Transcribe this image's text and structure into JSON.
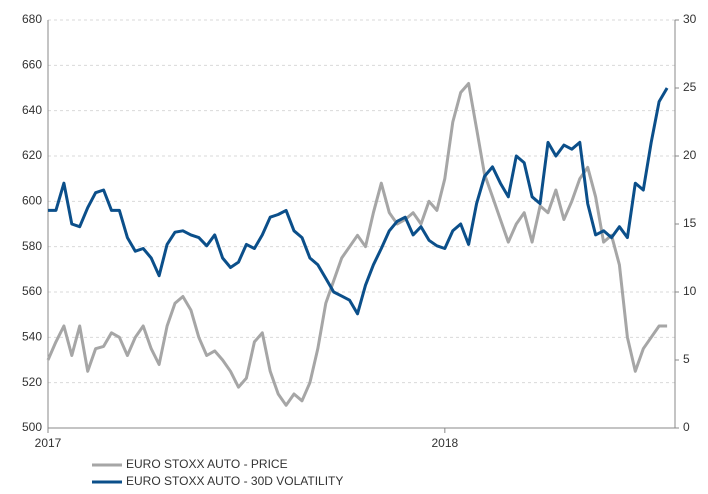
{
  "chart_data": {
    "type": "line",
    "x": [
      2017.0,
      2017.02,
      2017.04,
      2017.06,
      2017.08,
      2017.1,
      2017.12,
      2017.14,
      2017.16,
      2017.18,
      2017.2,
      2017.22,
      2017.24,
      2017.26,
      2017.28,
      2017.3,
      2017.32,
      2017.34,
      2017.36,
      2017.38,
      2017.4,
      2017.42,
      2017.44,
      2017.46,
      2017.48,
      2017.5,
      2017.52,
      2017.54,
      2017.56,
      2017.58,
      2017.6,
      2017.62,
      2017.64,
      2017.66,
      2017.68,
      2017.7,
      2017.72,
      2017.74,
      2017.76,
      2017.78,
      2017.8,
      2017.82,
      2017.84,
      2017.86,
      2017.88,
      2017.9,
      2017.92,
      2017.94,
      2017.96,
      2017.98,
      2018.0,
      2018.02,
      2018.04,
      2018.06,
      2018.08,
      2018.1,
      2018.12,
      2018.14,
      2018.16,
      2018.18,
      2018.2,
      2018.22,
      2018.24,
      2018.26,
      2018.28,
      2018.3,
      2018.32,
      2018.34,
      2018.36,
      2018.38,
      2018.4,
      2018.42,
      2018.44,
      2018.46,
      2018.48,
      2018.5,
      2018.52,
      2018.54,
      2018.56
    ],
    "series": [
      {
        "name": "EURO STOXX AUTO - PRICE",
        "color": "#a6a6a6",
        "axis": "y",
        "values": [
          530,
          538,
          545,
          532,
          545,
          525,
          535,
          536,
          542,
          540,
          532,
          540,
          545,
          535,
          528,
          545,
          555,
          558,
          552,
          540,
          532,
          534,
          530,
          525,
          518,
          522,
          538,
          542,
          525,
          515,
          510,
          515,
          512,
          520,
          535,
          555,
          565,
          575,
          580,
          585,
          580,
          595,
          608,
          595,
          590,
          592,
          595,
          590,
          600,
          596,
          610,
          635,
          648,
          652,
          632,
          612,
          602,
          592,
          582,
          590,
          595,
          582,
          598,
          595,
          605,
          592,
          600,
          610,
          615,
          602,
          582,
          585,
          572,
          540,
          525,
          535,
          540,
          545,
          545
        ]
      },
      {
        "name": "EURO STOXX AUTO - 30D VOLATILITY",
        "color": "#0b4f8a",
        "axis": "y2",
        "values": [
          16,
          16,
          18,
          15,
          14.8,
          16.2,
          17.3,
          17.5,
          16,
          16,
          14,
          13,
          13.2,
          12.5,
          11.2,
          13.5,
          14.4,
          14.5,
          14.2,
          14,
          13.4,
          14.2,
          12.5,
          11.8,
          12.2,
          13.5,
          13.2,
          14.2,
          15.5,
          15.7,
          16,
          14.5,
          14,
          12.5,
          12,
          11,
          10,
          9.7,
          9.4,
          8.4,
          10.5,
          12,
          13.2,
          14.5,
          15.2,
          15.5,
          14.2,
          14.8,
          13.8,
          13.4,
          13.2,
          14.5,
          15,
          13.5,
          16.5,
          18.5,
          19.2,
          18,
          17,
          20,
          19.5,
          17,
          16.5,
          21,
          20,
          20.8,
          20.5,
          21,
          16.5,
          14.2,
          14.5,
          14,
          14.8,
          14,
          18,
          17.5,
          21,
          24,
          25
        ]
      }
    ],
    "xlim": [
      2017,
      2018.58
    ],
    "xticks": [
      2017,
      2018
    ],
    "ylim": [
      500,
      680
    ],
    "yticks": [
      500,
      520,
      540,
      560,
      580,
      600,
      620,
      640,
      660,
      680
    ],
    "y2lim": [
      0,
      30
    ],
    "y2ticks": [
      0,
      5,
      10,
      15,
      20,
      25,
      30
    ],
    "grid": true
  }
}
